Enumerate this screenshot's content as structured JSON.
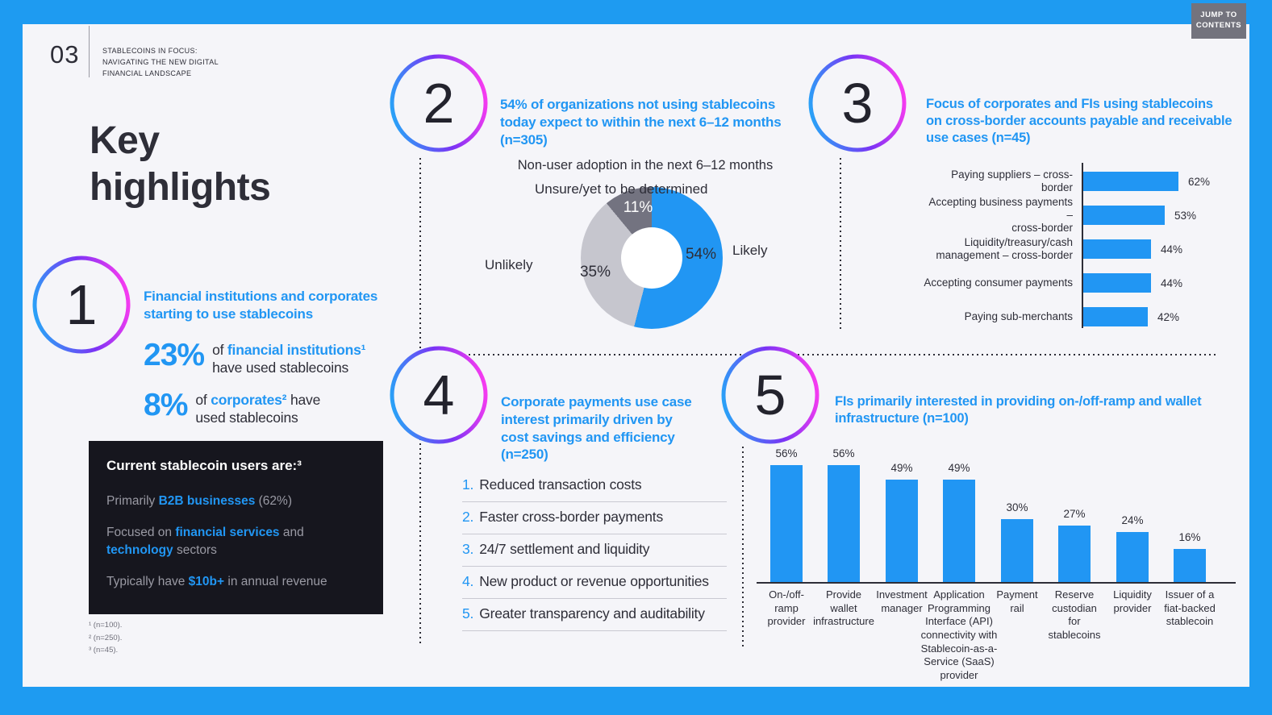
{
  "frame": {
    "jump_button": "JUMP TO\nCONTENTS"
  },
  "header": {
    "page_number": "03",
    "eyebrow": "STABLECOINS IN FOCUS:\nNAVIGATING THE NEW DIGITAL\nFINANCIAL LANDSCAPE",
    "title": "Key\nhighlights"
  },
  "footnotes": "¹ (n=100).\n² (n=250).\n³ (n=45).",
  "s1": {
    "number": "1",
    "heading": "Financial institutions and corporates\nstarting to use stablecoins",
    "stats": [
      {
        "value": "23%",
        "lines": [
          [
            {
              "t": "of ",
              "c": "d"
            },
            {
              "t": "financial institutions¹",
              "c": "b"
            }
          ],
          [
            {
              "t": "have used stablecoins",
              "c": "d"
            }
          ]
        ]
      },
      {
        "value": "8%",
        "lines": [
          [
            {
              "t": "of ",
              "c": "d"
            },
            {
              "t": "corporates²",
              "c": "b"
            },
            {
              "t": " have",
              "c": "d"
            }
          ],
          [
            {
              "t": "used stablecoins",
              "c": "d"
            }
          ]
        ]
      }
    ],
    "users_box": {
      "title": "Current stablecoin users are:³",
      "items": [
        [
          [
            {
              "t": "Primarily ",
              "c": "g"
            },
            {
              "t": "B2B businesses",
              "c": "b"
            },
            {
              "t": " (62%)",
              "c": "g"
            }
          ]
        ],
        [
          [
            {
              "t": "Focused on ",
              "c": "g"
            },
            {
              "t": "financial services",
              "c": "b"
            },
            {
              "t": " and",
              "c": "g"
            }
          ],
          [
            {
              "t": "technology",
              "c": "b"
            },
            {
              "t": " sectors",
              "c": "g"
            }
          ]
        ],
        [
          [
            {
              "t": "Typically have ",
              "c": "g"
            },
            {
              "t": "$10b+",
              "c": "b"
            },
            {
              "t": " in annual revenue",
              "c": "g"
            }
          ]
        ]
      ]
    }
  },
  "s2": {
    "number": "2",
    "heading": "54% of organizations not using stablecoins\ntoday expect to within the next 6–12 months\n(n=305)"
  },
  "s3": {
    "number": "3",
    "heading": "Focus of corporates and FIs using stablecoins\non cross-border accounts payable and receivable\nuse cases (n=45)"
  },
  "s4": {
    "number": "4",
    "heading": "Corporate payments use case\ninterest primarily driven by\ncost savings and efficiency\n(n=250)",
    "list": [
      {
        "num": "1.",
        "text": "Reduced transaction costs"
      },
      {
        "num": "2.",
        "text": "Faster cross-border payments"
      },
      {
        "num": "3.",
        "text": "24/7 settlement and liquidity"
      },
      {
        "num": "4.",
        "text": "New product or revenue opportunities"
      },
      {
        "num": "5.",
        "text": "Greater transparency and auditability"
      }
    ]
  },
  "s5": {
    "number": "5",
    "heading": "FIs primarily interested in providing on-/off-ramp and wallet\ninfrastructure (n=100)"
  },
  "chart_data": [
    {
      "type": "pie",
      "donut": true,
      "title": "Non-user adoption in the next 6–12 months",
      "slices": [
        {
          "label": "Likely",
          "value": 54,
          "color": "#2196f3",
          "value_label_color": "#2e2e38"
        },
        {
          "label": "Unsure/yet to\nbe determined",
          "value": 35,
          "color": "#c6c6ce",
          "value_label_color": "#2e2e38"
        },
        {
          "label": "Unlikely",
          "value": 11,
          "color": "#737380",
          "value_label_color": "#ffffff"
        }
      ]
    },
    {
      "type": "bar",
      "orientation": "horizontal",
      "unit": "%",
      "categories": [
        "Paying suppliers – cross-border",
        "Accepting business payments –\ncross-border",
        "Liquidity/treasury/cash\nmanagement – cross-border",
        "Accepting consumer payments",
        "Paying sub-merchants"
      ],
      "values": [
        62,
        53,
        44,
        44,
        42
      ]
    },
    {
      "type": "bar",
      "orientation": "vertical",
      "unit": "%",
      "categories": [
        "On-/off-\nramp\nprovider",
        "Provide\nwallet\ninfrastructure",
        "Investment\nmanager",
        "Application\nProgramming\nInterface (API)\nconnectivity with\nStablecoin-as-a-\nService (SaaS)\nprovider",
        "Payment\nrail",
        "Reserve\ncustodian\nfor\nstablecoins",
        "Liquidity\nprovider",
        "Issuer of a\nfiat-backed\nstablecoin"
      ],
      "values": [
        56,
        56,
        49,
        49,
        30,
        27,
        24,
        16
      ]
    }
  ],
  "colors": {
    "frame_blue": "#1e9bf1",
    "accent_blue": "#2196f3",
    "dark_text": "#2e2e38",
    "donut_light_gray": "#c6c6ce",
    "donut_dark_gray": "#737380",
    "users_box_bg": "#16161e",
    "users_box_gray": "#9a9aa4",
    "ring_gradient": [
      "#2aa1f7",
      "#7b33f5",
      "#f63bf0"
    ]
  }
}
